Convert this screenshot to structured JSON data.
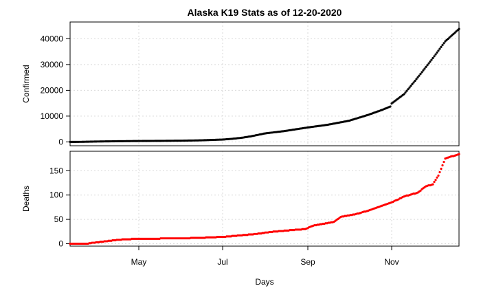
{
  "title": "Alaska K19 Stats as of 12-20-2020",
  "chart_data": [
    {
      "type": "scatter",
      "panel": "top",
      "ylabel": "Confirmed",
      "xlim": [
        "2020-03-12",
        "2020-12-20"
      ],
      "ylim": [
        -1500,
        46500
      ],
      "yticks": [
        0,
        10000,
        20000,
        30000,
        40000
      ],
      "color": "#000000",
      "grid": true,
      "series": [
        {
          "x": [
            "2020-03-12",
            "2020-03-20",
            "2020-04-01",
            "2020-04-15",
            "2020-05-01",
            "2020-05-15",
            "2020-06-01",
            "2020-06-15",
            "2020-07-01",
            "2020-07-08",
            "2020-07-15",
            "2020-07-22",
            "2020-08-01",
            "2020-08-15",
            "2020-09-01",
            "2020-09-15",
            "2020-10-01",
            "2020-10-15",
            "2020-10-25",
            "2020-10-31",
            "2020-11-01",
            "2020-11-10",
            "2020-11-20",
            "2020-12-01",
            "2020-12-10",
            "2020-12-20"
          ],
          "y": [
            0,
            20,
            150,
            250,
            350,
            400,
            480,
            600,
            900,
            1200,
            1600,
            2200,
            3300,
            4200,
            5600,
            6600,
            8200,
            10500,
            12400,
            13700,
            14900,
            18500,
            25000,
            32500,
            39000,
            43800
          ]
        }
      ]
    },
    {
      "type": "scatter",
      "panel": "bottom",
      "ylabel": "Deaths",
      "xlabel": "Days",
      "xlim": [
        "2020-03-12",
        "2020-12-20"
      ],
      "ylim": [
        -5,
        190
      ],
      "yticks": [
        0,
        50,
        100,
        150
      ],
      "xticks": [
        {
          "date": "2020-05-01",
          "label": "May"
        },
        {
          "date": "2020-07-01",
          "label": "Jul"
        },
        {
          "date": "2020-09-01",
          "label": "Sep"
        },
        {
          "date": "2020-11-01",
          "label": "Nov"
        }
      ],
      "color": "#ff0000",
      "grid": true,
      "series": [
        {
          "x": [
            "2020-03-12",
            "2020-03-24",
            "2020-04-01",
            "2020-04-10",
            "2020-04-20",
            "2020-05-01",
            "2020-06-01",
            "2020-06-15",
            "2020-07-01",
            "2020-07-10",
            "2020-07-25",
            "2020-08-05",
            "2020-08-20",
            "2020-08-30",
            "2020-09-05",
            "2020-09-20",
            "2020-09-25",
            "2020-10-05",
            "2020-10-15",
            "2020-10-31",
            "2020-11-05",
            "2020-11-10",
            "2020-11-20",
            "2020-11-26",
            "2020-12-01",
            "2020-12-05",
            "2020-12-10",
            "2020-12-20"
          ],
          "y": [
            0,
            0,
            3,
            6,
            9,
            10,
            11,
            12,
            14,
            16,
            20,
            24,
            28,
            30,
            37,
            45,
            55,
            60,
            68,
            84,
            90,
            97,
            105,
            118,
            122,
            140,
            175,
            184
          ]
        }
      ]
    }
  ]
}
